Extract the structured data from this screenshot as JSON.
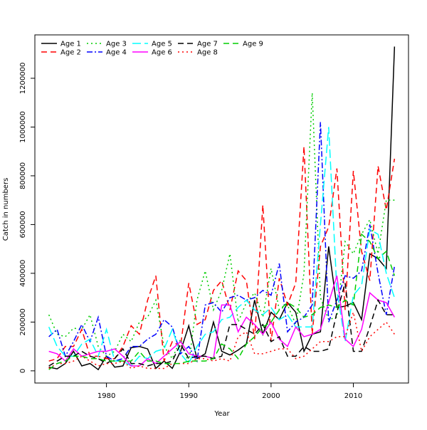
{
  "chart_data": {
    "type": "line",
    "xlabel": "Year",
    "ylabel": "Catch in numbers",
    "xlim": [
      1971.3,
      2016.7
    ],
    "ylim": [
      -50000,
      1378000
    ],
    "xticks": [
      1980,
      1990,
      2000,
      2010
    ],
    "yticks": [
      0,
      200000,
      400000,
      600000,
      800000,
      1000000,
      1200000
    ],
    "grid": false,
    "legend_position": "top-left",
    "x": [
      1973,
      1974,
      1975,
      1976,
      1977,
      1978,
      1979,
      1980,
      1981,
      1982,
      1983,
      1984,
      1985,
      1986,
      1987,
      1988,
      1989,
      1990,
      1991,
      1992,
      1993,
      1994,
      1995,
      1996,
      1997,
      1998,
      1999,
      2000,
      2001,
      2002,
      2003,
      2004,
      2005,
      2006,
      2007,
      2008,
      2009,
      2010,
      2011,
      2012,
      2013,
      2014,
      2015
    ],
    "series": [
      {
        "name": "Age 1",
        "color": "#000000",
        "dash": "solid",
        "values": [
          15000,
          8000,
          30000,
          80000,
          20000,
          30000,
          5000,
          60000,
          15000,
          20000,
          95000,
          100000,
          90000,
          10000,
          40000,
          10000,
          80000,
          185000,
          50000,
          70000,
          200000,
          80000,
          65000,
          85000,
          110000,
          290000,
          150000,
          240000,
          210000,
          280000,
          240000,
          80000,
          150000,
          160000,
          510000,
          260000,
          265000,
          280000,
          210000,
          480000,
          460000,
          420000,
          1330000
        ]
      },
      {
        "name": "Age 2",
        "color": "#ff0000",
        "dash": "dashed",
        "values": [
          40000,
          50000,
          100000,
          100000,
          170000,
          60000,
          60000,
          50000,
          50000,
          100000,
          185000,
          150000,
          290000,
          390000,
          40000,
          120000,
          100000,
          360000,
          190000,
          210000,
          330000,
          370000,
          250000,
          410000,
          370000,
          130000,
          680000,
          120000,
          380000,
          270000,
          360000,
          920000,
          150000,
          510000,
          590000,
          830000,
          250000,
          820000,
          490000,
          370000,
          840000,
          660000,
          870000
        ]
      },
      {
        "name": "Age 3",
        "color": "#00cd00",
        "dash": "dotted",
        "values": [
          230000,
          150000,
          140000,
          175000,
          170000,
          230000,
          100000,
          60000,
          80000,
          150000,
          120000,
          200000,
          220000,
          290000,
          100000,
          50000,
          130000,
          30000,
          290000,
          410000,
          250000,
          330000,
          480000,
          200000,
          280000,
          320000,
          220000,
          420000,
          250000,
          270000,
          190000,
          400000,
          1140000,
          300000,
          210000,
          220000,
          530000,
          480000,
          560000,
          620000,
          480000,
          700000,
          700000
        ]
      },
      {
        "name": "Age 4",
        "color": "#0000ff",
        "dash": "dotdash",
        "values": [
          140000,
          170000,
          60000,
          120000,
          190000,
          120000,
          220000,
          60000,
          40000,
          50000,
          100000,
          100000,
          130000,
          150000,
          210000,
          180000,
          70000,
          100000,
          40000,
          270000,
          280000,
          240000,
          300000,
          310000,
          290000,
          300000,
          330000,
          310000,
          440000,
          160000,
          200000,
          220000,
          270000,
          1020000,
          200000,
          290000,
          390000,
          380000,
          410000,
          600000,
          400000,
          230000,
          430000
        ]
      },
      {
        "name": "Age 5",
        "color": "#00ffff",
        "dash": "longdash",
        "values": [
          180000,
          100000,
          60000,
          60000,
          110000,
          130000,
          60000,
          170000,
          40000,
          40000,
          20000,
          60000,
          50000,
          80000,
          90000,
          170000,
          70000,
          30000,
          100000,
          150000,
          160000,
          210000,
          220000,
          260000,
          290000,
          250000,
          230000,
          260000,
          210000,
          230000,
          180000,
          180000,
          180000,
          600000,
          1000000,
          330000,
          120000,
          310000,
          350000,
          580000,
          560000,
          400000,
          300000
        ]
      },
      {
        "name": "Age 6",
        "color": "#ff00ff",
        "dash": "solid",
        "values": [
          80000,
          70000,
          40000,
          90000,
          60000,
          70000,
          80000,
          80000,
          90000,
          60000,
          20000,
          20000,
          50000,
          30000,
          60000,
          90000,
          120000,
          70000,
          60000,
          60000,
          50000,
          270000,
          270000,
          160000,
          220000,
          190000,
          150000,
          200000,
          130000,
          100000,
          180000,
          140000,
          150000,
          170000,
          280000,
          390000,
          130000,
          100000,
          170000,
          320000,
          290000,
          280000,
          220000
        ]
      },
      {
        "name": "Age 7",
        "color": "#000000",
        "dash": "dashed",
        "values": [
          20000,
          40000,
          60000,
          60000,
          80000,
          60000,
          50000,
          30000,
          50000,
          90000,
          30000,
          30000,
          20000,
          30000,
          30000,
          40000,
          110000,
          50000,
          60000,
          60000,
          50000,
          60000,
          190000,
          190000,
          170000,
          150000,
          190000,
          120000,
          140000,
          60000,
          60000,
          100000,
          80000,
          80000,
          90000,
          240000,
          360000,
          80000,
          80000,
          180000,
          290000,
          230000,
          230000
        ]
      },
      {
        "name": "Age 8",
        "color": "#ff0000",
        "dash": "dotted",
        "values": [
          10000,
          30000,
          30000,
          40000,
          60000,
          40000,
          20000,
          30000,
          30000,
          40000,
          10000,
          20000,
          10000,
          10000,
          10000,
          30000,
          30000,
          30000,
          50000,
          50000,
          40000,
          50000,
          40000,
          140000,
          160000,
          70000,
          70000,
          80000,
          90000,
          90000,
          50000,
          60000,
          90000,
          120000,
          120000,
          140000,
          140000,
          240000,
          80000,
          140000,
          170000,
          200000,
          150000
        ]
      },
      {
        "name": "Age 9",
        "color": "#00cd00",
        "dash": "dashed",
        "values": [
          5000,
          30000,
          40000,
          60000,
          60000,
          50000,
          50000,
          40000,
          40000,
          40000,
          40000,
          80000,
          40000,
          40000,
          30000,
          30000,
          30000,
          40000,
          40000,
          40000,
          50000,
          110000,
          90000,
          50000,
          110000,
          140000,
          180000,
          200000,
          250000,
          280000,
          260000,
          220000,
          230000,
          260000,
          270000,
          260000,
          290000,
          270000,
          560000,
          530000,
          460000,
          490000,
          390000
        ]
      }
    ]
  }
}
